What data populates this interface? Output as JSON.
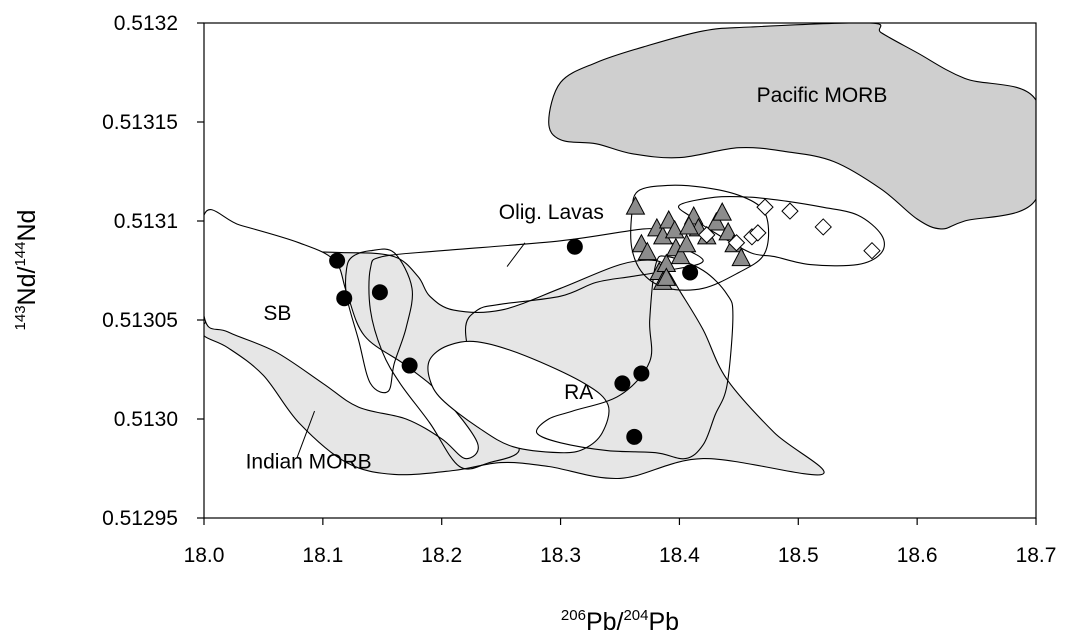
{
  "chart_data": {
    "type": "scatter",
    "title": "",
    "xlabel": {
      "sup1": "206",
      "base1": "Pb/",
      "sup2": "204",
      "base2": "Pb"
    },
    "ylabel": {
      "sup1": "143",
      "base1": "Nd/",
      "sup2": "144",
      "base2": "Nd"
    },
    "xlim": [
      18.0,
      18.7
    ],
    "ylim": [
      0.51295,
      0.5132
    ],
    "x_ticks": [
      "18.0",
      "18.1",
      "18.2",
      "18.3",
      "18.4",
      "18.5",
      "18.6",
      "18.7"
    ],
    "y_ticks": [
      "0.51295",
      "0.5130",
      "0.51305",
      "0.5131",
      "0.51315",
      "0.5132"
    ],
    "grid": false,
    "fields": [
      {
        "label": "Pacific MORB",
        "fill": "#cfcfcf",
        "label_at": [
          18.465,
          0.51316
        ],
        "outline": [
          [
            18.29,
            0.51315
          ],
          [
            18.3,
            0.51317
          ],
          [
            18.33,
            0.51318
          ],
          [
            18.37,
            0.513188
          ],
          [
            18.42,
            0.513196
          ],
          [
            18.46,
            0.513198
          ],
          [
            18.56,
            0.5132
          ],
          [
            18.57,
            0.513195
          ],
          [
            18.6,
            0.513185
          ],
          [
            18.64,
            0.513172
          ],
          [
            18.7,
            0.513161
          ],
          [
            18.7,
            0.513111
          ],
          [
            18.64,
            0.5131
          ],
          [
            18.62,
            0.513096
          ],
          [
            18.6,
            0.513101
          ],
          [
            18.57,
            0.513116
          ],
          [
            18.53,
            0.51313
          ],
          [
            18.49,
            0.513135
          ],
          [
            18.45,
            0.513137
          ],
          [
            18.4,
            0.513132
          ],
          [
            18.36,
            0.513134
          ],
          [
            18.33,
            0.513139
          ],
          [
            18.3,
            0.513141
          ]
        ]
      },
      {
        "label": "Indian MORB",
        "fill": "#e6e6e6",
        "label_at": [
          18.035,
          0.512975
        ],
        "leader": [
          [
            18.093,
            0.513004
          ],
          [
            18.078,
            0.51298
          ]
        ],
        "outline": [
          [
            18.0,
            0.513042
          ],
          [
            18.0,
            0.513048
          ],
          [
            18.03,
            0.513062
          ],
          [
            18.07,
            0.513082
          ],
          [
            18.12,
            0.513084
          ],
          [
            18.16,
            0.513082
          ],
          [
            18.18,
            0.513072
          ],
          [
            18.19,
            0.513062
          ],
          [
            18.21,
            0.513055
          ],
          [
            18.25,
            0.513055
          ],
          [
            18.3,
            0.513066
          ],
          [
            18.35,
            0.513078
          ],
          [
            18.38,
            0.51308
          ],
          [
            18.39,
            0.513075
          ],
          [
            18.4,
            0.513065
          ],
          [
            18.42,
            0.513045
          ],
          [
            18.44,
            0.51302
          ],
          [
            18.48,
            0.512993
          ],
          [
            18.52,
            0.512972
          ],
          [
            18.42,
            0.51298
          ],
          [
            18.35,
            0.51297
          ],
          [
            18.29,
            0.512976
          ],
          [
            18.25,
            0.512978
          ],
          [
            18.21,
            0.512974
          ],
          [
            18.16,
            0.512972
          ],
          [
            18.12,
            0.512978
          ],
          [
            18.08,
            0.512998
          ],
          [
            18.05,
            0.513022
          ],
          [
            18.02,
            0.513036
          ]
        ]
      },
      {
        "label": "SB",
        "fill": "#ffffff",
        "label_at": [
          18.05,
          0.51305
        ],
        "outline": [
          [
            18.0,
            0.513052
          ],
          [
            18.0,
            0.513103
          ],
          [
            18.03,
            0.513098
          ],
          [
            18.08,
            0.513089
          ],
          [
            18.11,
            0.51308
          ],
          [
            18.12,
            0.513064
          ],
          [
            18.135,
            0.513042
          ],
          [
            18.17,
            0.513027
          ],
          [
            18.2,
            0.513012
          ],
          [
            18.23,
            0.512988
          ],
          [
            18.22,
            0.51298
          ],
          [
            18.2,
            0.51299
          ],
          [
            18.17,
            0.513
          ],
          [
            18.13,
            0.513006
          ],
          [
            18.1,
            0.513018
          ],
          [
            18.06,
            0.513034
          ],
          [
            18.02,
            0.513044
          ]
        ]
      },
      {
        "label": "Olig. Lavas",
        "fill": "none",
        "label_at": [
          18.248,
          0.513101
        ],
        "leader": [
          [
            18.27,
            0.513089
          ],
          [
            18.255,
            0.513077
          ]
        ],
        "outline": [
          [
            18.14,
            0.513076
          ],
          [
            18.15,
            0.513082
          ],
          [
            18.2,
            0.513085
          ],
          [
            18.3,
            0.51309
          ],
          [
            18.37,
            0.513096
          ],
          [
            18.38,
            0.513094
          ],
          [
            18.39,
            0.51309
          ],
          [
            18.42,
            0.51308
          ],
          [
            18.39,
            0.513075
          ],
          [
            18.36,
            0.513072
          ],
          [
            18.33,
            0.513069
          ],
          [
            18.3,
            0.513062
          ],
          [
            18.25,
            0.513058
          ],
          [
            18.23,
            0.513055
          ],
          [
            18.22,
            0.513045
          ],
          [
            18.23,
            0.513018
          ],
          [
            18.25,
            0.512998
          ],
          [
            18.265,
            0.512984
          ],
          [
            18.24,
            0.512978
          ],
          [
            18.215,
            0.512976
          ],
          [
            18.19,
            0.512998
          ],
          [
            18.165,
            0.513018
          ],
          [
            18.15,
            0.513034
          ],
          [
            18.14,
            0.513055
          ]
        ]
      },
      {
        "label": "",
        "fill": "none",
        "outline": [
          [
            18.125,
            0.513082
          ],
          [
            18.14,
            0.513085
          ],
          [
            18.16,
            0.513084
          ],
          [
            18.175,
            0.513066
          ],
          [
            18.17,
            0.513046
          ],
          [
            18.16,
            0.513028
          ],
          [
            18.155,
            0.513014
          ],
          [
            18.14,
            0.513018
          ],
          [
            18.13,
            0.51304
          ],
          [
            18.12,
            0.513062
          ],
          [
            18.12,
            0.513076
          ]
        ]
      },
      {
        "label": "RA",
        "fill": "#ffffff",
        "label_at": [
          18.303,
          0.51301
        ],
        "outline": [
          [
            18.19,
            0.51303
          ],
          [
            18.205,
            0.513037
          ],
          [
            18.23,
            0.513039
          ],
          [
            18.27,
            0.513032
          ],
          [
            18.32,
            0.513018
          ],
          [
            18.34,
            0.513007
          ],
          [
            18.335,
            0.512993
          ],
          [
            18.32,
            0.512985
          ],
          [
            18.3,
            0.512983
          ],
          [
            18.26,
            0.512986
          ],
          [
            18.23,
            0.512996
          ],
          [
            18.2,
            0.51301
          ],
          [
            18.19,
            0.51302
          ]
        ]
      },
      {
        "label": "",
        "fill": "none",
        "outline": [
          [
            18.31,
            0.513004
          ],
          [
            18.35,
            0.513012
          ],
          [
            18.375,
            0.513029
          ],
          [
            18.375,
            0.51305
          ],
          [
            18.38,
            0.513078
          ],
          [
            18.39,
            0.513082
          ],
          [
            18.42,
            0.513075
          ],
          [
            18.44,
            0.513063
          ],
          [
            18.445,
            0.513052
          ],
          [
            18.44,
            0.513017
          ],
          [
            18.43,
            0.513002
          ],
          [
            18.42,
            0.512987
          ],
          [
            18.405,
            0.51298
          ],
          [
            18.38,
            0.512983
          ],
          [
            18.34,
            0.512984
          ],
          [
            18.3,
            0.512988
          ],
          [
            18.28,
            0.512993
          ],
          [
            18.29,
            0.513
          ]
        ]
      },
      {
        "label": "",
        "fill": "none",
        "outline": [
          [
            18.4,
            0.513108
          ],
          [
            18.43,
            0.513112
          ],
          [
            18.46,
            0.513112
          ],
          [
            18.49,
            0.51311
          ],
          [
            18.52,
            0.513107
          ],
          [
            18.55,
            0.513103
          ],
          [
            18.57,
            0.513093
          ],
          [
            18.57,
            0.513084
          ],
          [
            18.55,
            0.513078
          ],
          [
            18.51,
            0.513078
          ],
          [
            18.48,
            0.513082
          ],
          [
            18.46,
            0.513084
          ],
          [
            18.43,
            0.513094
          ],
          [
            18.41,
            0.513102
          ]
        ]
      },
      {
        "label": "",
        "fill": "none",
        "outline": [
          [
            18.365,
            0.513115
          ],
          [
            18.39,
            0.513118
          ],
          [
            18.42,
            0.513117
          ],
          [
            18.45,
            0.513113
          ],
          [
            18.47,
            0.513106
          ],
          [
            18.475,
            0.513094
          ],
          [
            18.47,
            0.513082
          ],
          [
            18.45,
            0.513074
          ],
          [
            18.42,
            0.513066
          ],
          [
            18.39,
            0.513066
          ],
          [
            18.37,
            0.513073
          ],
          [
            18.36,
            0.513086
          ],
          [
            18.36,
            0.513104
          ]
        ]
      }
    ],
    "series": [
      {
        "marker": "circle",
        "x": [
          18.112,
          18.118,
          18.148,
          18.173,
          18.312,
          18.352,
          18.368,
          18.362,
          18.409
        ],
        "y": [
          0.51308,
          0.513061,
          0.513064,
          0.513027,
          0.513087,
          0.513018,
          0.513023,
          0.512991,
          0.513074
        ]
      },
      {
        "marker": "triangle",
        "x": [
          18.363,
          18.368,
          18.373,
          18.381,
          18.386,
          18.391,
          18.396,
          18.383,
          18.389,
          18.397,
          18.401,
          18.386,
          18.406,
          18.412,
          18.416,
          18.423,
          18.431,
          18.436,
          18.441,
          18.446,
          18.452,
          18.408,
          18.389
        ],
        "y": [
          0.513107,
          0.513088,
          0.513084,
          0.513096,
          0.513092,
          0.5131,
          0.513095,
          0.513074,
          0.513078,
          0.513086,
          0.513082,
          0.513069,
          0.513088,
          0.513102,
          0.513096,
          0.513092,
          0.513099,
          0.513104,
          0.513094,
          0.513088,
          0.513081,
          0.513097,
          0.513071
        ]
      },
      {
        "marker": "diamond",
        "x": [
          18.423,
          18.448,
          18.461,
          18.466,
          18.472,
          18.493,
          18.521,
          18.562
        ],
        "y": [
          0.513093,
          0.513089,
          0.513092,
          0.513094,
          0.513107,
          0.513105,
          0.513097,
          0.513085
        ]
      }
    ]
  }
}
